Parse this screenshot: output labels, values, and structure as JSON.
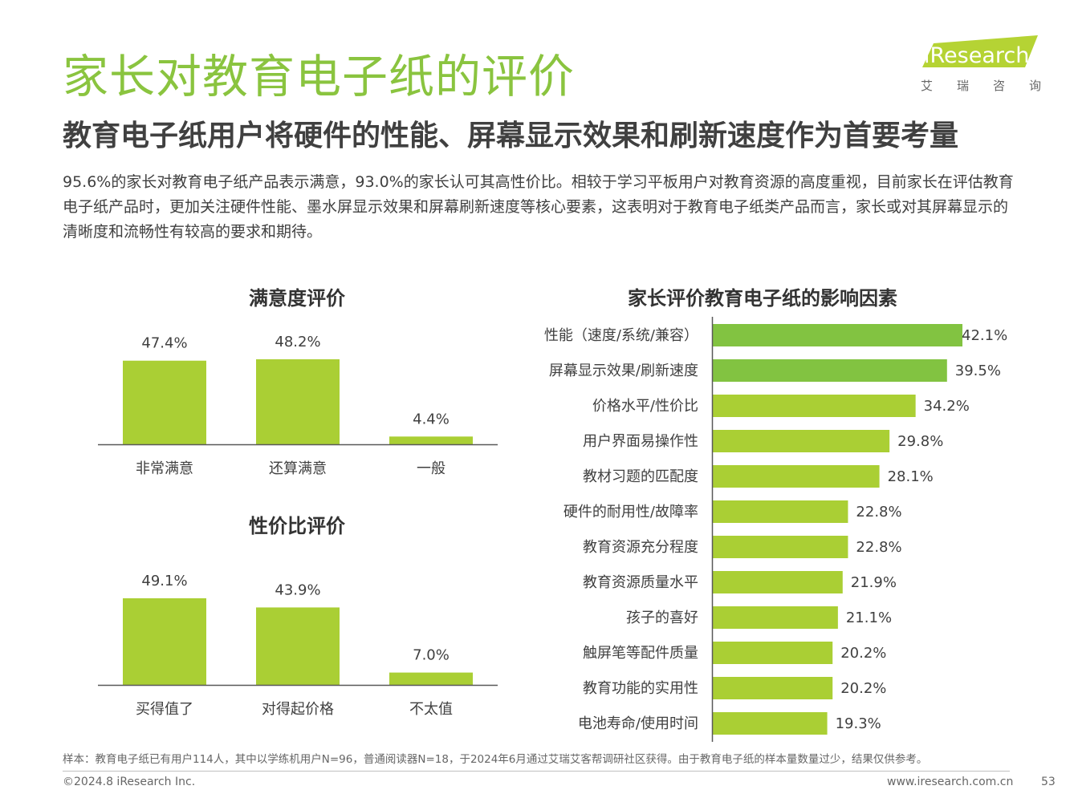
{
  "header": {
    "title": "家长对教育电子纸的评价",
    "subtitle": "教育电子纸用户将硬件的性能、屏幕显示效果和刷新速度作为首要考量",
    "summary": "95.6%的家长对教育电子纸产品表示满意，93.0%的家长认可其高性价比。相较于学习平板用户对教育资源的高度重视，目前家长在评估教育电子纸产品时，更加关注硬件性能、墨水屏显示效果和屏幕刷新速度等核心要素，这表明对于教育电子纸类产品而言，家长或对其屏幕显示的清晰度和流畅性有较高的要求和期待。"
  },
  "logo": {
    "brand": "iResearch",
    "sub_chars": [
      "艾",
      "瑞",
      "咨",
      "询"
    ]
  },
  "colors": {
    "title_green": "#8ac43f",
    "bar_light": "#aacf34",
    "bar_dark": "#82c341",
    "axis": "#595959"
  },
  "chart_data": [
    {
      "type": "bar",
      "title": "满意度评价",
      "categories": [
        "非常满意",
        "还算满意",
        "一般"
      ],
      "values": [
        47.4,
        48.2,
        4.4
      ],
      "labels": [
        "47.4%",
        "48.2%",
        "4.4%"
      ],
      "ylim": [
        0,
        50
      ],
      "unit": "%"
    },
    {
      "type": "bar",
      "title": "性价比评价",
      "categories": [
        "买得值了",
        "对得起价格",
        "不太值"
      ],
      "values": [
        49.1,
        43.9,
        7.0
      ],
      "labels": [
        "49.1%",
        "43.9%",
        "7.0%"
      ],
      "ylim": [
        0,
        50
      ],
      "unit": "%"
    },
    {
      "type": "bar",
      "orientation": "horizontal",
      "title": "家长评价教育电子纸的影响因素",
      "categories": [
        "性能（速度/系统/兼容）",
        "屏幕显示效果/刷新速度",
        "价格水平/性价比",
        "用户界面易操作性",
        "教材习题的匹配度",
        "硬件的耐用性/故障率",
        "教育资源充分程度",
        "教育资源质量水平",
        "孩子的喜好",
        "触屏笔等配件质量",
        "教育功能的实用性",
        "电池寿命/使用时间"
      ],
      "values": [
        42.1,
        39.5,
        34.2,
        29.8,
        28.1,
        22.8,
        22.8,
        21.9,
        21.1,
        20.2,
        20.2,
        19.3
      ],
      "labels": [
        "42.1%",
        "39.5%",
        "34.2%",
        "29.8%",
        "28.1%",
        "22.8%",
        "22.8%",
        "21.9%",
        "21.1%",
        "20.2%",
        "20.2%",
        "19.3%"
      ],
      "highlight_count": 2,
      "xlim": [
        0,
        42.1
      ],
      "unit": "%"
    }
  ],
  "footer": {
    "note": "样本：教育电子纸已有用户114人，其中以学练机用户N=96，普通阅读器N=18，于2024年6月通过艾瑞艾客帮调研社区获得。由于教育电子纸的样本量数量过少，结果仅供参考。",
    "copyright": "©2024.8 iResearch Inc.",
    "website": "www.iresearch.com.cn",
    "page": "53"
  }
}
